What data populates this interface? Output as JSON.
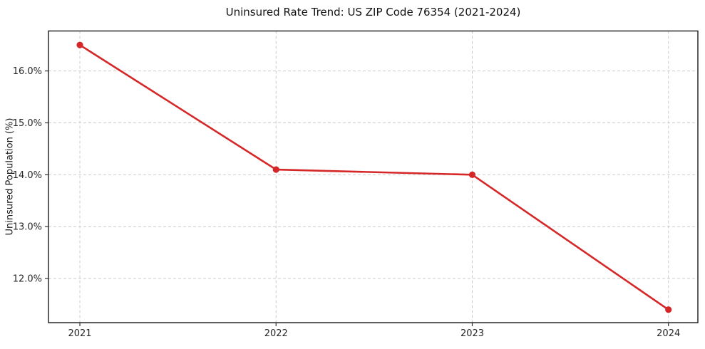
{
  "chart_data": {
    "type": "line",
    "title": "Uninsured Rate Trend: US ZIP Code 76354 (2021-2024)",
    "xlabel": "",
    "ylabel": "Uninsured Population (%)",
    "x": [
      2021,
      2022,
      2023,
      2024
    ],
    "x_tick_labels": [
      "2021",
      "2022",
      "2023",
      "2024"
    ],
    "values": [
      16.5,
      14.1,
      14.0,
      11.4
    ],
    "y_ticks": [
      12,
      13,
      14,
      15,
      16
    ],
    "y_tick_labels": [
      "12.0%",
      "13.0%",
      "14.0%",
      "15.0%",
      "16.0%"
    ],
    "xlim": [
      2020.84,
      2024.15
    ],
    "ylim": [
      11.15,
      16.77
    ],
    "grid": true,
    "grid_style": "dashed",
    "legend": "none",
    "marker": "circle",
    "colors": {
      "line": "#d62728",
      "marker": "#d62728",
      "grid": "#cccccc",
      "spine": "#1a1a1a",
      "tick": "#333333",
      "text": "#262626",
      "background": "#ffffff"
    }
  }
}
